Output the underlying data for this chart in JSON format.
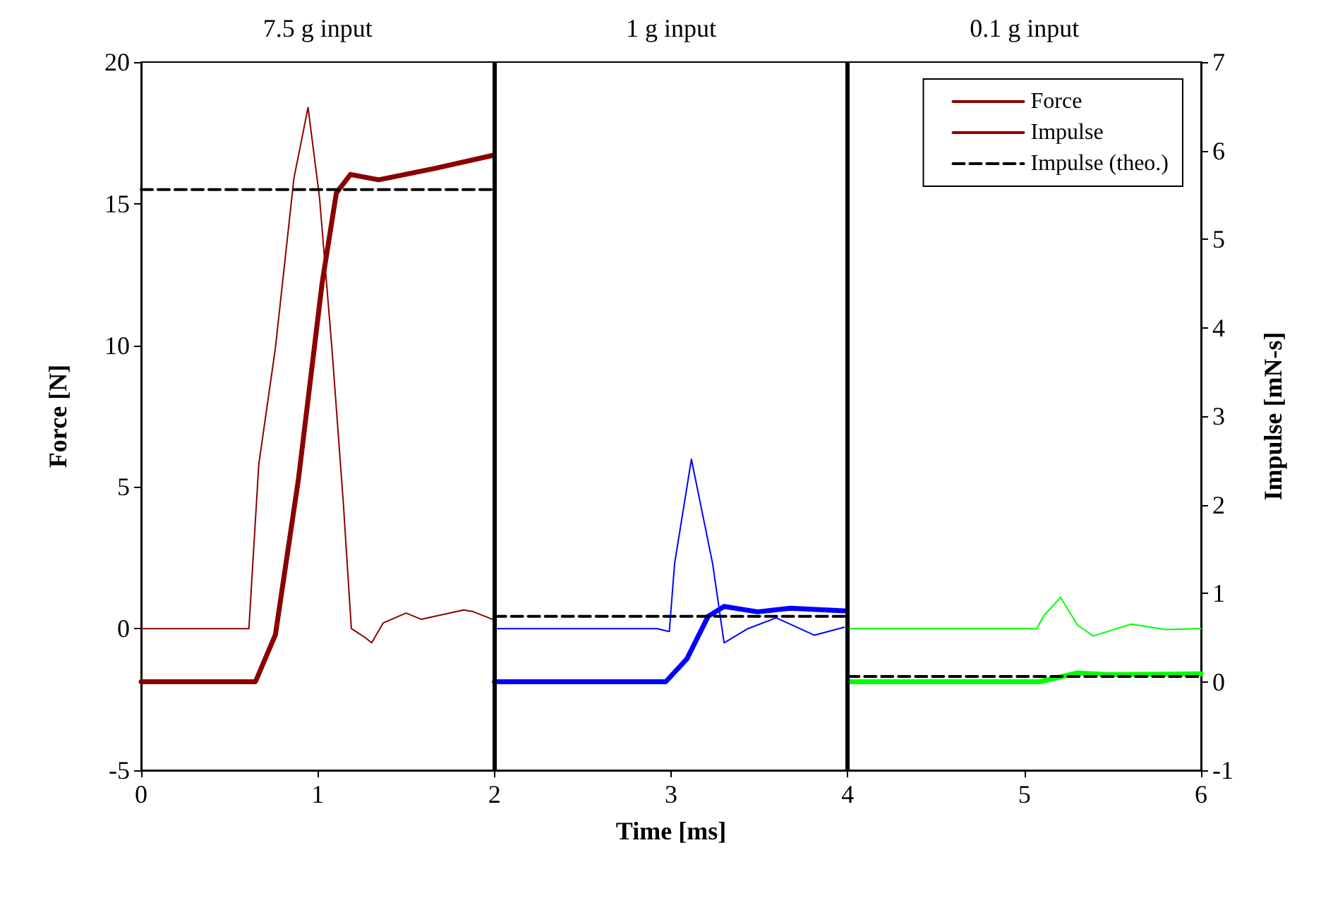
{
  "chart_data": {
    "type": "line",
    "xlabel": "Time [ms]",
    "ylabel": "Force [N]",
    "y2label": "Impulse [mN-s]",
    "xlim": [
      0,
      6
    ],
    "xticks": [
      0,
      1,
      2,
      3,
      4,
      5,
      6
    ],
    "ylim": [
      -5,
      20
    ],
    "yticks": [
      -5,
      0,
      5,
      10,
      15,
      20
    ],
    "y2lim": [
      -1,
      7
    ],
    "y2ticks": [
      -1,
      0,
      1,
      2,
      3,
      4,
      5,
      6,
      7
    ],
    "grid": false,
    "legend": "top right",
    "marker": "none",
    "annotations": [
      "7.5 g input",
      "1 g input",
      "0.1 g input"
    ],
    "ref_lines": [
      {
        "axis": "x",
        "value": 2,
        "color": "#000000"
      },
      {
        "axis": "x",
        "value": 4,
        "color": "#000000"
      }
    ],
    "series": [
      {
        "name": "Force",
        "color": "#8b0000",
        "line_style": "solid",
        "x": [
          0,
          0.61,
          0.666,
          0.76,
          0.865,
          0.945,
          1.01,
          1.08,
          1.145,
          1.19,
          1.265,
          1.305,
          1.37,
          1.5,
          1.585,
          1.825,
          1.88,
          2.0
        ],
        "values": [
          0,
          0,
          5.8,
          9.9,
          15.9,
          18.4,
          15.2,
          9.9,
          4.4,
          0,
          -0.3,
          -0.5,
          0.2,
          0.55,
          0.33,
          0.66,
          0.6,
          0.3
        ]
      },
      {
        "name": "Impulse",
        "color": "#8b0000",
        "axis": "y2",
        "line_style": "solid",
        "x": [
          0,
          0.647,
          0.76,
          0.89,
          1.025,
          1.105,
          1.185,
          1.345,
          1.665,
          2.0
        ],
        "values": [
          0,
          0,
          0.53,
          2.28,
          4.51,
          5.52,
          5.73,
          5.67,
          5.8,
          5.95
        ]
      },
      {
        "name": "Impulse (theo.)",
        "color": "#000000",
        "axis": "y2",
        "line_style": "dashed",
        "x": [
          0,
          2
        ],
        "values": [
          5.56,
          5.56
        ]
      },
      {
        "color": "#0000ff",
        "line_style": "solid",
        "x": [
          2,
          2.92,
          2.99,
          3.02,
          3.115,
          3.235,
          3.3,
          3.435,
          3.595,
          3.81,
          3.98
        ],
        "values": [
          0,
          0,
          -0.1,
          2.3,
          5.98,
          2.3,
          -0.5,
          0,
          0.38,
          -0.23,
          0.05
        ]
      },
      {
        "color": "#0000ff",
        "axis": "y2",
        "line_style": "solid",
        "x": [
          2,
          2.97,
          3.09,
          3.21,
          3.3,
          3.49,
          3.675,
          3.98
        ],
        "values": [
          0,
          0,
          0.26,
          0.74,
          0.85,
          0.79,
          0.83,
          0.8
        ]
      },
      {
        "color": "#000000",
        "axis": "y2",
        "line_style": "dashed",
        "x": [
          2,
          4
        ],
        "values": [
          0.74,
          0.74
        ]
      },
      {
        "color": "#00ff00",
        "line_style": "solid",
        "x": [
          4,
          5.07,
          5.11,
          5.205,
          5.3,
          5.39,
          5.605,
          5.8,
          6
        ],
        "values": [
          0,
          0,
          0.46,
          1.1,
          0.13,
          -0.26,
          0.16,
          -0.03,
          0
        ]
      },
      {
        "color": "#00ff00",
        "axis": "y2",
        "line_style": "solid",
        "x": [
          4,
          5.085,
          5.3,
          5.48,
          6
        ],
        "values": [
          0,
          0,
          0.1,
          0.08,
          0.09
        ]
      },
      {
        "color": "#000000",
        "axis": "y2",
        "line_style": "dashed",
        "x": [
          4,
          6
        ],
        "values": [
          0.06,
          0.06
        ]
      }
    ]
  }
}
